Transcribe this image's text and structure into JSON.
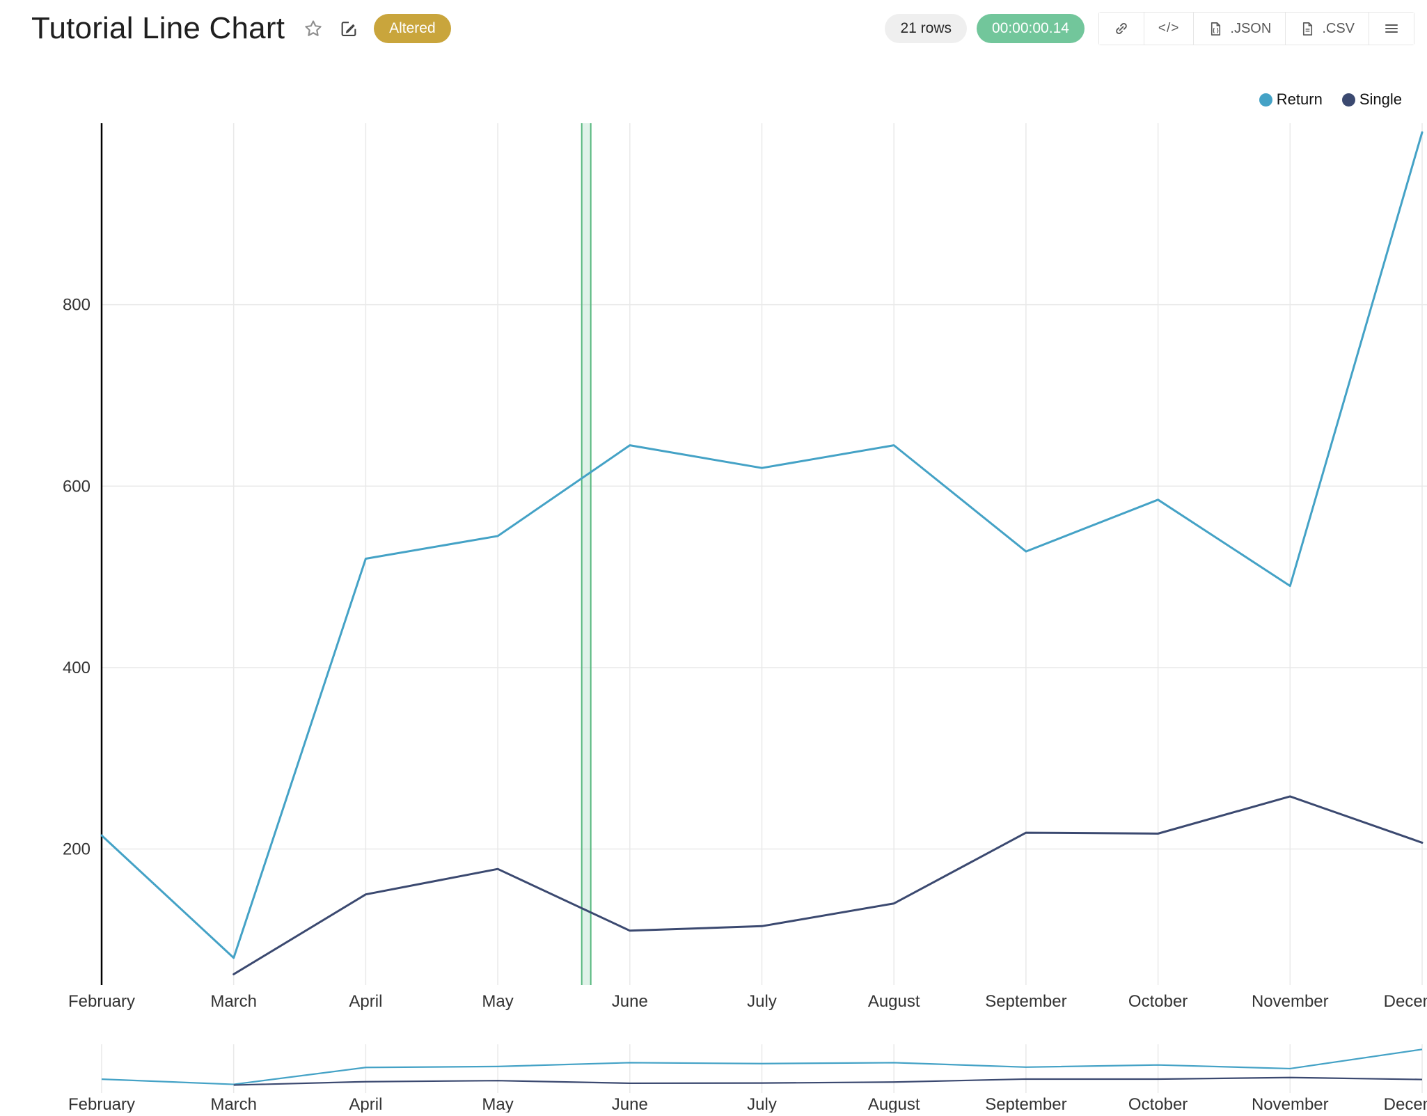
{
  "header": {
    "title": "Tutorial Line Chart",
    "altered_badge": "Altered",
    "rows_badge": "21 rows",
    "runtime_badge": "00:00:00.14",
    "toolbar": {
      "code_label": "</>",
      "json_label": ".JSON",
      "csv_label": ".CSV"
    }
  },
  "chart_data": {
    "type": "line",
    "title": "Tutorial Line Chart",
    "categories": [
      "February",
      "March",
      "April",
      "May",
      "June",
      "July",
      "August",
      "September",
      "October",
      "November",
      "December"
    ],
    "series": [
      {
        "name": "Return",
        "color": "#44a2c6",
        "values": [
          215,
          80,
          520,
          545,
          645,
          620,
          645,
          528,
          585,
          490,
          990
        ]
      },
      {
        "name": "Single",
        "color": "#3b4970",
        "values": [
          null,
          62,
          150,
          178,
          110,
          115,
          140,
          218,
          217,
          258,
          207
        ]
      }
    ],
    "yticks": [
      200,
      400,
      600,
      800
    ],
    "ylim": [
      50,
      1000
    ],
    "grid": true,
    "legend_position": "top-right",
    "has_range_selector": true,
    "highlight_band": {
      "index_position": 3.67,
      "width": 13,
      "fill": "rgba(114,196,154,0.22)",
      "stroke": "#58b87f"
    }
  }
}
